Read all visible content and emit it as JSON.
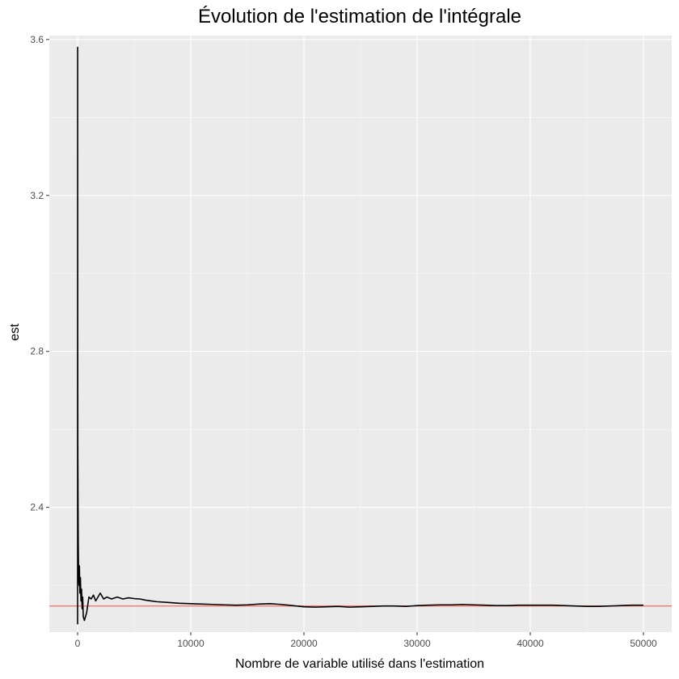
{
  "chart_data": {
    "type": "line",
    "title": "Évolution de l'estimation de l'intégrale",
    "xlabel": "Nombre de variable utilisé dans l'estimation",
    "ylabel": "est",
    "xlim": [
      -2500,
      52500
    ],
    "ylim": [
      2.08,
      3.61
    ],
    "x_ticks": [
      0,
      10000,
      20000,
      30000,
      40000,
      50000
    ],
    "x_tick_labels": [
      "0",
      "10000",
      "20000",
      "30000",
      "40000",
      "50000"
    ],
    "y_ticks": [
      2.4,
      2.8,
      3.2,
      3.6
    ],
    "y_tick_labels": [
      "2.4",
      "2.8",
      "3.2",
      "3.6"
    ],
    "grid": true,
    "series": [
      {
        "values_label": "est",
        "color": "#000000",
        "x": [
          1,
          5,
          10,
          20,
          40,
          60,
          80,
          100,
          130,
          160,
          200,
          250,
          300,
          350,
          400,
          450,
          500,
          600,
          700,
          800,
          900,
          1000,
          1200,
          1400,
          1600,
          1800,
          2000,
          2300,
          2600,
          3000,
          3500,
          4000,
          4500,
          5000,
          5500,
          6000,
          6500,
          7000,
          8000,
          9000,
          10000,
          11000,
          12000,
          13000,
          14000,
          15000,
          16000,
          17000,
          18000,
          19000,
          20000,
          21000,
          22000,
          23000,
          24000,
          25000,
          26000,
          27000,
          28000,
          29000,
          30000,
          31000,
          32000,
          33000,
          34000,
          35000,
          36000,
          37000,
          38000,
          39000,
          40000,
          41000,
          42000,
          43000,
          44000,
          45000,
          46000,
          47000,
          48000,
          49000,
          50000
        ],
        "values": [
          2.1,
          3.58,
          2.85,
          2.55,
          2.4,
          2.3,
          2.25,
          2.22,
          2.2,
          2.25,
          2.18,
          2.22,
          2.16,
          2.19,
          2.14,
          2.17,
          2.12,
          2.11,
          2.12,
          2.13,
          2.15,
          2.17,
          2.165,
          2.175,
          2.16,
          2.17,
          2.18,
          2.165,
          2.17,
          2.165,
          2.17,
          2.165,
          2.168,
          2.166,
          2.165,
          2.162,
          2.16,
          2.158,
          2.156,
          2.154,
          2.153,
          2.152,
          2.151,
          2.15,
          2.149,
          2.15,
          2.152,
          2.153,
          2.151,
          2.148,
          2.145,
          2.144,
          2.145,
          2.146,
          2.144,
          2.145,
          2.146,
          2.147,
          2.147,
          2.146,
          2.148,
          2.149,
          2.15,
          2.15,
          2.151,
          2.15,
          2.149,
          2.148,
          2.148,
          2.149,
          2.149,
          2.149,
          2.149,
          2.148,
          2.147,
          2.146,
          2.146,
          2.147,
          2.148,
          2.149,
          2.149
        ]
      }
    ],
    "reference_line": {
      "y": 2.147,
      "color": "#f8766d"
    },
    "colors": {
      "panel": "#ebebeb",
      "grid_major": "#ffffff",
      "grid_minor": "#f5f5f5",
      "line": "#000000"
    }
  }
}
